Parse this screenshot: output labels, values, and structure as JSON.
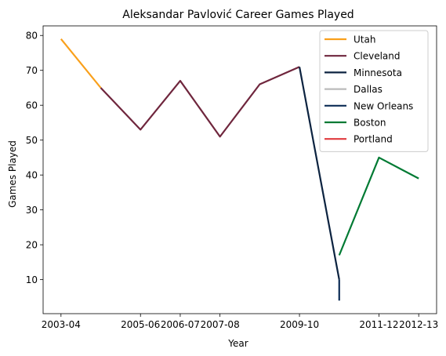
{
  "chart_data": {
    "type": "line",
    "title": "Aleksandar Pavlović Career Games Played",
    "xlabel": "Year",
    "ylabel": "Games Played",
    "x_ticks": [
      "2003-04",
      "2005-06",
      "2006-07",
      "2007-08",
      "2009-10",
      "2011-12",
      "2012-13"
    ],
    "y_ticks": [
      10,
      20,
      30,
      40,
      50,
      60,
      70,
      80
    ],
    "ylim": [
      0.25,
      82.75
    ],
    "grid": false,
    "legend_position": "top-right",
    "series": [
      {
        "name": "Utah",
        "color": "#f9a01b",
        "points": [
          [
            "2003-04",
            79
          ],
          [
            "2004-05",
            65
          ]
        ]
      },
      {
        "name": "Cleveland",
        "color": "#6f263d",
        "points": [
          [
            "2004-05",
            65
          ],
          [
            "2005-06",
            53
          ],
          [
            "2006-07",
            67
          ],
          [
            "2007-08",
            51
          ],
          [
            "2008-09",
            66
          ],
          [
            "2009-10",
            71
          ]
        ]
      },
      {
        "name": "Minnesota",
        "color": "#0c2340",
        "points": [
          [
            "2009-10",
            71
          ],
          [
            "2010-11",
            10
          ]
        ]
      },
      {
        "name": "Dallas",
        "color": "#bbbbbb",
        "points": [
          [
            "2010-11",
            10
          ],
          [
            "2010-11",
            10
          ]
        ]
      },
      {
        "name": "New Orleans",
        "color": "#0c2c56",
        "points": [
          [
            "2010-11",
            4
          ],
          [
            "2010-11",
            10
          ]
        ]
      },
      {
        "name": "Boston",
        "color": "#007a33",
        "points": [
          [
            "2010-11",
            17
          ],
          [
            "2011-12",
            45
          ],
          [
            "2012-13",
            39
          ]
        ]
      },
      {
        "name": "Portland",
        "color": "#e03a3e",
        "points": [
          [
            "2010-11",
            10
          ],
          [
            "2010-11",
            10
          ]
        ]
      }
    ]
  }
}
